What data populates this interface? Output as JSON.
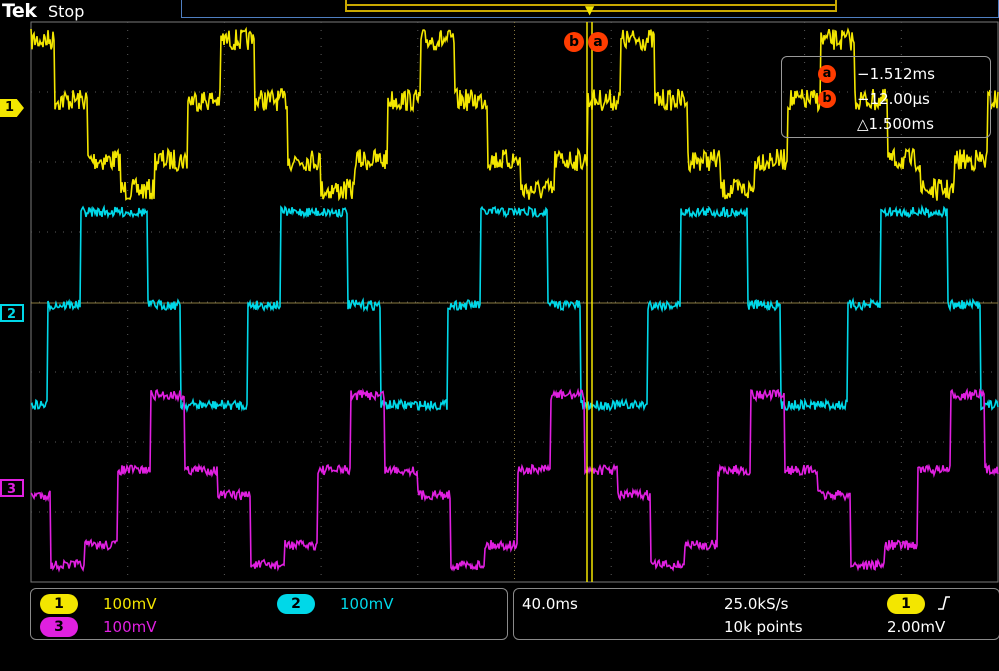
{
  "header": {
    "brand": "Tek",
    "status": "Stop"
  },
  "colors": {
    "ch1": "#f3e600",
    "ch2": "#00d8e8",
    "ch3": "#e020e0",
    "cursor": "#ff3c00",
    "graticule": "#7a7a7a"
  },
  "channel_markers": {
    "ch1": "1",
    "ch2": "2",
    "ch3": "3"
  },
  "cursors": {
    "a": {
      "label": "a",
      "value": "−1.512ms"
    },
    "b": {
      "label": "b",
      "value": "−12.00µs"
    },
    "delta": "△1.500ms"
  },
  "vertical": {
    "ch1": {
      "badge": "1",
      "scale": "100mV"
    },
    "ch2": {
      "badge": "2",
      "scale": "100mV"
    },
    "ch3": {
      "badge": "3",
      "scale": "100mV"
    }
  },
  "horizontal": {
    "timebase": "40.0ms",
    "sample_rate": "25.0kS/s",
    "record_length": "10k points"
  },
  "trigger": {
    "source": "1",
    "slope_icon": "rising-edge-icon",
    "level": "2.00mV"
  },
  "icons": {
    "trigger_position": "trigger-position-icon"
  }
}
